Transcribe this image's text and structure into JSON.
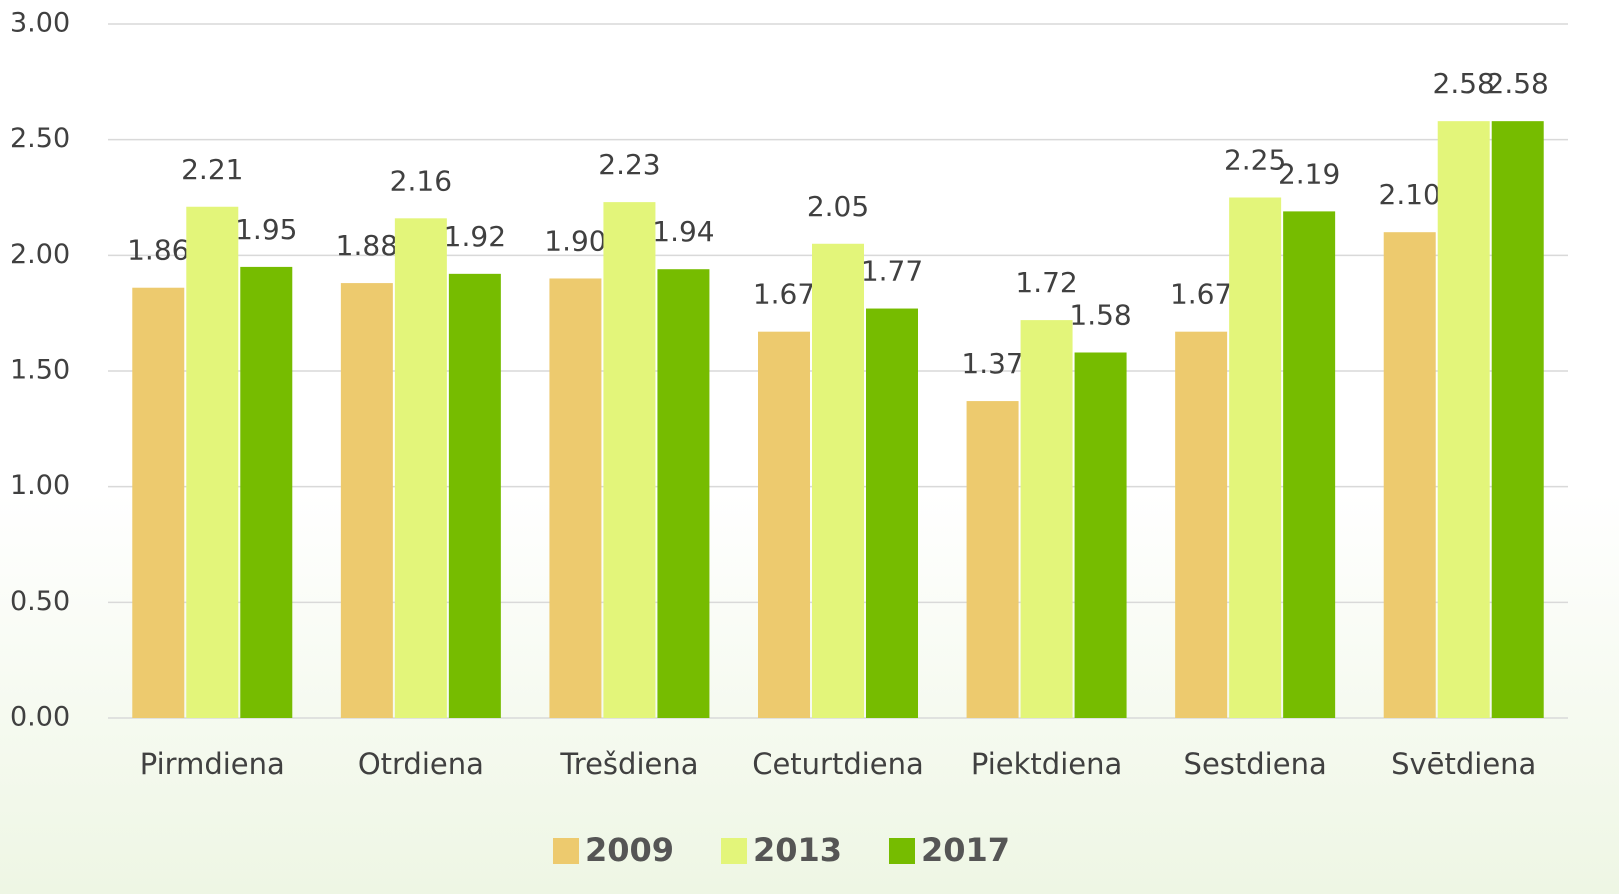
{
  "chart_data": {
    "type": "bar",
    "categories": [
      "Pirmdiena",
      "Otrdiena",
      "Trešdiena",
      "Ceturtdiena",
      "Piektdiena",
      "Sestdiena",
      "Svētdiena"
    ],
    "series": [
      {
        "name": "2009",
        "color": "#edca6e",
        "values": [
          1.86,
          1.88,
          1.9,
          1.67,
          1.37,
          1.67,
          2.1
        ],
        "value_labels": [
          "1.86",
          "1.88",
          "1.90",
          "1.67",
          "1.37",
          "1.67",
          "2.10"
        ]
      },
      {
        "name": "2013",
        "color": "#e3f57a",
        "values": [
          2.21,
          2.16,
          2.23,
          2.05,
          1.72,
          2.25,
          2.58
        ],
        "value_labels": [
          "2.21",
          "2.16",
          "2.23",
          "2.05",
          "1.72",
          "2.25",
          "2.58"
        ]
      },
      {
        "name": "2017",
        "color": "#76bc00",
        "values": [
          1.95,
          1.92,
          1.94,
          1.77,
          1.58,
          2.19,
          2.58
        ],
        "value_labels": [
          "1.95",
          "1.92",
          "1.94",
          "1.77",
          "1.58",
          "2.19",
          "2.58"
        ]
      }
    ],
    "ylim": [
      0,
      3
    ],
    "yticks": [
      {
        "value": 0,
        "label": "0.00"
      },
      {
        "value": 0.5,
        "label": "0.50"
      },
      {
        "value": 1,
        "label": "1.00"
      },
      {
        "value": 1.5,
        "label": "1.50"
      },
      {
        "value": 2,
        "label": "2.00"
      },
      {
        "value": 2.5,
        "label": "2.50"
      },
      {
        "value": 3,
        "label": "3.00"
      }
    ],
    "grid": true,
    "legend": "bottom"
  }
}
